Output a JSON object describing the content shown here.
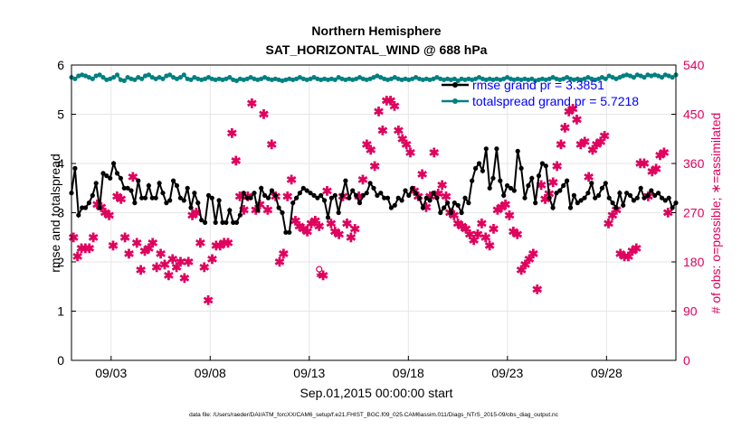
{
  "chart_data": {
    "type": "line",
    "title": "Northern Hemisphere",
    "subtitle": "SAT_HORIZONTAL_WIND @ 688 hPa",
    "xlabel": "Sep.01,2015 00:00:00 start",
    "ylabel_left": "rmse and totalspread",
    "ylabel_right": "# of obs: o=possible; ∗=assimilated",
    "ylim_left": [
      0,
      6
    ],
    "ylim_right": [
      0,
      540
    ],
    "yticks_left": [
      "0",
      "1",
      "2",
      "3",
      "4",
      "5",
      "6"
    ],
    "yticks_right": [
      "0",
      "90",
      "180",
      "270",
      "360",
      "450",
      "540"
    ],
    "xlim_days": [
      1,
      31.5
    ],
    "xticks": [
      {
        "day": 3,
        "label": "09/03"
      },
      {
        "day": 8,
        "label": "09/08"
      },
      {
        "day": 13,
        "label": "09/13"
      },
      {
        "day": 18,
        "label": "09/18"
      },
      {
        "day": 23,
        "label": "09/23"
      },
      {
        "day": 28,
        "label": "09/28"
      }
    ],
    "grid": true,
    "legend_position": "top-right",
    "series": [
      {
        "name": "rmse grand pr = 3.3851",
        "color": "#000000",
        "marker": "circle",
        "values": [
          3.4,
          3.9,
          2.95,
          3.1,
          3.1,
          3.2,
          3.35,
          3.6,
          3.1,
          3.8,
          3.75,
          3.7,
          4.0,
          3.8,
          3.7,
          3.5,
          3.5,
          3.45,
          3.2,
          3.65,
          3.3,
          3.3,
          3.55,
          3.3,
          3.3,
          3.6,
          3.4,
          3.2,
          3.25,
          3.65,
          3.55,
          3.3,
          3.25,
          3.5,
          3.1,
          3.4,
          3.2,
          2.85,
          2.8,
          3.35,
          3.3,
          2.8,
          3.25,
          2.8,
          2.8,
          3.05,
          2.8,
          2.8,
          2.95,
          3.4,
          3.3,
          3.3,
          3.4,
          3.05,
          3.5,
          3.35,
          3.3,
          3.45,
          3.35,
          3.1,
          3.0,
          2.6,
          2.6,
          3.2,
          3.3,
          3.4,
          3.5,
          3.45,
          3.4,
          3.35,
          3.3,
          3.35,
          3.25,
          2.9,
          3.3,
          3.35,
          3.0,
          3.35,
          3.65,
          3.3,
          3.45,
          3.35,
          3.2,
          3.35,
          3.4,
          3.6,
          3.5,
          3.35,
          3.4,
          3.3,
          3.3,
          3.1,
          3.15,
          3.3,
          3.25,
          3.45,
          3.35,
          3.5,
          3.4,
          3.3,
          3.1,
          3.3,
          3.25,
          3.4,
          3.3,
          3.0,
          3.1,
          3.2,
          3.0,
          3.2,
          3.15,
          3.0,
          3.3,
          3.2,
          3.65,
          3.9,
          4.0,
          3.85,
          4.3,
          3.5,
          3.7,
          4.3,
          3.65,
          3.35,
          3.55,
          3.5,
          3.45,
          4.25,
          3.9,
          3.3,
          3.55,
          3.7,
          3.2,
          3.75,
          4.0,
          3.95,
          3.3,
          3.1,
          3.4,
          3.45,
          3.55,
          3.65,
          3.1,
          3.35,
          3.2,
          3.25,
          3.3,
          3.4,
          3.6,
          3.3,
          3.35,
          3.5,
          3.6,
          3.3,
          3.2,
          3.1,
          3.4,
          3.15,
          3.4,
          3.35,
          3.25,
          3.3,
          3.5,
          3.3,
          3.35,
          3.45,
          3.35,
          3.4,
          3.3,
          3.25,
          3.3,
          3.1,
          3.2
        ]
      },
      {
        "name": "totalspread grand pr = 5.7218",
        "color": "#008080",
        "marker": "circle",
        "values": [
          5.75,
          5.72,
          5.78,
          5.8,
          5.78,
          5.75,
          5.72,
          5.78,
          5.8,
          5.75,
          5.7,
          5.72,
          5.75,
          5.8,
          5.7,
          5.68,
          5.75,
          5.72,
          5.7,
          5.75,
          5.72,
          5.78,
          5.8,
          5.75,
          5.72,
          5.75,
          5.72,
          5.78,
          5.8,
          5.75,
          5.72,
          5.75,
          5.8,
          5.72,
          5.7,
          5.75,
          5.72,
          5.7,
          5.72,
          5.75,
          5.72,
          5.7,
          5.72,
          5.7,
          5.72,
          5.75,
          5.7,
          5.68,
          5.72,
          5.7,
          5.72,
          5.75,
          5.72,
          5.7,
          5.72,
          5.75,
          5.72,
          5.7,
          5.72,
          5.7,
          5.68,
          5.7,
          5.72,
          5.7,
          5.72,
          5.75,
          5.72,
          5.7,
          5.72,
          5.75,
          5.72,
          5.7,
          5.72,
          5.7,
          5.72,
          5.7,
          5.75,
          5.72,
          5.7,
          5.72,
          5.7,
          5.72,
          5.75,
          5.72,
          5.7,
          5.72,
          5.75,
          5.78,
          5.75,
          5.72,
          5.7,
          5.72,
          5.75,
          5.72,
          5.7,
          5.72,
          5.7,
          5.72,
          5.75,
          5.72,
          5.7,
          5.72,
          5.7,
          5.72,
          5.75,
          5.72,
          5.7,
          5.72,
          5.7,
          5.72,
          5.68,
          5.72,
          5.7,
          5.72,
          5.7,
          5.72,
          5.75,
          5.72,
          5.7,
          5.72,
          5.7,
          5.72,
          5.7,
          5.72,
          5.75,
          5.72,
          5.7,
          5.72,
          5.7,
          5.72,
          5.7,
          5.72,
          5.68,
          5.7,
          5.72,
          5.7,
          5.72,
          5.75,
          5.72,
          5.7,
          5.72,
          5.75,
          5.72,
          5.7,
          5.72,
          5.7,
          5.72,
          5.75,
          5.72,
          5.7,
          5.72,
          5.75,
          5.72,
          5.78,
          5.75,
          5.72,
          5.75,
          5.78,
          5.8,
          5.78,
          5.75,
          5.8,
          5.78,
          5.75,
          5.8,
          5.78,
          5.8,
          5.78,
          5.75,
          5.8,
          5.78,
          5.75,
          5.8
        ]
      }
    ],
    "obs_assimilated": {
      "name": "# of obs assimilated",
      "color": "#e0005e",
      "days": [
        1.1,
        1.3,
        1.5,
        1.7,
        1.9,
        2.1,
        2.3,
        2.5,
        2.7,
        2.9,
        3.1,
        3.3,
        3.5,
        3.7,
        3.9,
        4.1,
        4.3,
        4.5,
        4.7,
        4.9,
        5.1,
        5.3,
        5.5,
        5.7,
        5.9,
        6.1,
        6.3,
        6.5,
        6.7,
        6.9,
        7.1,
        7.3,
        7.5,
        7.7,
        7.9,
        8.1,
        8.3,
        8.5,
        8.7,
        8.9,
        9.1,
        9.3,
        9.5,
        9.7,
        9.9,
        10.1,
        10.3,
        10.5,
        10.7,
        10.9,
        11.1,
        11.3,
        11.5,
        11.7,
        11.9,
        12.1,
        12.3,
        12.5,
        12.7,
        12.9,
        13.1,
        13.3,
        13.5,
        13.7,
        13.9,
        14.1,
        14.3,
        14.5,
        14.7,
        14.9,
        15.1,
        15.3,
        15.5,
        15.7,
        15.9,
        16.1,
        16.3,
        16.5,
        16.7,
        16.9,
        17.1,
        17.3,
        17.5,
        17.7,
        17.9,
        18.1,
        18.3,
        18.5,
        18.7,
        18.9,
        19.1,
        19.3,
        19.5,
        19.7,
        19.9,
        20.1,
        20.3,
        20.5,
        20.7,
        20.9,
        21.1,
        21.3,
        21.5,
        21.7,
        21.9,
        22.1,
        22.3,
        22.5,
        22.7,
        22.9,
        23.1,
        23.3,
        23.5,
        23.7,
        23.9,
        24.1,
        24.3,
        24.5,
        24.7,
        24.9,
        25.1,
        25.3,
        25.5,
        25.7,
        25.9,
        26.1,
        26.3,
        26.5,
        26.7,
        26.9,
        27.1,
        27.3,
        27.5,
        27.7,
        27.9,
        28.1,
        28.3,
        28.5,
        28.7,
        28.9,
        29.1,
        29.3,
        29.5,
        29.7,
        29.9,
        30.1,
        30.3,
        30.5,
        30.7,
        30.9,
        31.1
      ],
      "counts": [
        225,
        190,
        205,
        205,
        205,
        225,
        285,
        280,
        270,
        265,
        210,
        300,
        295,
        225,
        195,
        335,
        215,
        165,
        200,
        205,
        215,
        170,
        195,
        175,
        155,
        185,
        170,
        180,
        150,
        180,
        265,
        270,
        215,
        170,
        110,
        185,
        210,
        210,
        215,
        215,
        415,
        365,
        300,
        275,
        300,
        470,
        275,
        285,
        450,
        275,
        395,
        300,
        180,
        195,
        300,
        330,
        255,
        245,
        240,
        235,
        250,
        255,
        245,
        155,
        310,
        250,
        235,
        230,
        300,
        250,
        225,
        240,
        300,
        330,
        395,
        385,
        355,
        455,
        420,
        475,
        475,
        465,
        420,
        405,
        395,
        380,
        310,
        300,
        340,
        280,
        300,
        380,
        305,
        320,
        300,
        270,
        265,
        250,
        245,
        240,
        230,
        220,
        230,
        250,
        225,
        210,
        240,
        275,
        280,
        285,
        265,
        235,
        230,
        165,
        175,
        185,
        195,
        130,
        320,
        295,
        305,
        325,
        355,
        395,
        425,
        455,
        460,
        440,
        395,
        400,
        335,
        385,
        395,
        400,
        410,
        250,
        265,
        275,
        195,
        190,
        190,
        200,
        205,
        360,
        360,
        300,
        345,
        350,
        375,
        380,
        270
      ]
    },
    "obs_possible_only": {
      "day": 13.5,
      "count": 160
    }
  },
  "footer": {
    "data_file": "data file: /Users/raeder/DAI/ATM_forcXX/CAM6_setup/f.e21.FHIST_BGC.f09_025.CAM6assim.011/Diags_NTrS_2015-09/obs_diag_output.nc"
  }
}
